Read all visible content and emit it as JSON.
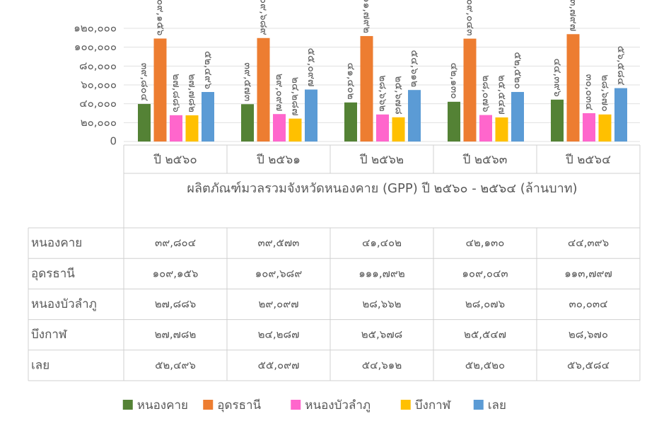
{
  "chart_data": {
    "type": "bar",
    "title": "ผลิตภัณฑ์มวลรวมจังหวัดหนองคาย (GPP) ปี ๒๕๖๐ - ๒๕๖๔ (ล้านบาท)",
    "categories": [
      "ปี ๒๕๖๐",
      "ปี ๒๕๖๑",
      "ปี ๒๕๖๒",
      "ปี ๒๕๖๓",
      "ปี ๒๕๖๔"
    ],
    "series": [
      {
        "name": "หนองคาย",
        "color": "#548235",
        "values": [
          39804,
          39573,
          41402,
          42130,
          44396
        ],
        "value_labels": [
          "๓๙,๘๐๔",
          "๓๙,๕๗๓",
          "๔๑,๔๐๒",
          "๔๒,๑๓๐",
          "๔๔,๓๙๖"
        ]
      },
      {
        "name": "อุดรธานี",
        "color": "#ed7d31",
        "values": [
          109156,
          109689,
          111792,
          109043,
          113797
        ],
        "value_labels": [
          "๑๐๙,๑๕๖",
          "๑๐๙,๖๘๙",
          "๑๑๑,๗๙๒",
          "๑๐๙,๐๔๓",
          "๑๑๓,๗๙๗"
        ]
      },
      {
        "name": "หนองบัวลำภู",
        "color": "#ff66cc",
        "values": [
          27886,
          29097,
          28662,
          28076,
          30034
        ],
        "value_labels": [
          "๒๗,๘๘๖",
          "๒๙,๐๙๗",
          "๒๘,๖๖๒",
          "๒๘,๐๗๖",
          "๓๐,๐๓๔"
        ]
      },
      {
        "name": "บึงกาฬ",
        "color": "#ffc000",
        "values": [
          27782,
          24287,
          25678,
          25547,
          28670
        ],
        "value_labels": [
          "๒๗,๗๘๒",
          "๒๔,๒๘๗",
          "๒๕,๖๗๘",
          "๒๕,๕๔๗",
          "๒๘,๖๗๐"
        ]
      },
      {
        "name": "เลย",
        "color": "#5b9bd5",
        "values": [
          52496,
          55097,
          54612,
          52520,
          56584
        ],
        "value_labels": [
          "๕๒,๔๙๖",
          "๕๕,๐๙๗",
          "๕๔,๖๑๒",
          "๕๒,๕๒๐",
          "๕๖,๕๘๔"
        ]
      }
    ],
    "ylim": [
      0,
      120000
    ],
    "yticks": [
      0,
      {
        "value": 20000,
        "label": "๒๐,๐๐๐"
      },
      {
        "value": 40000,
        "label": "๔๐,๐๐๐"
      },
      {
        "value": 60000,
        "label": "๖๐,๐๐๐"
      },
      {
        "value": 80000,
        "label": "๘๐,๐๐๐"
      },
      {
        "value": 100000,
        "label": "๑๐๐,๐๐๐"
      },
      {
        "value": 120000,
        "label": "๑๒๐,๐๐๐"
      }
    ],
    "grid": true
  }
}
